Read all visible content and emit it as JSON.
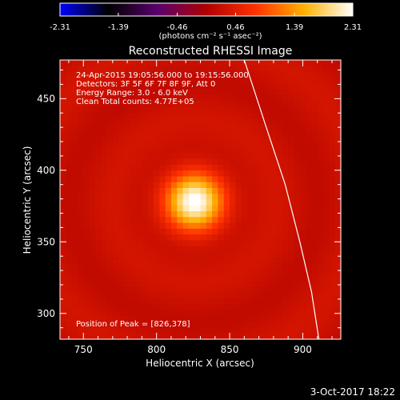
{
  "chart_data": {
    "type": "heatmap",
    "title": "Reconstructed RHESSI Image",
    "xlabel": "Heliocentric X (arcsec)",
    "ylabel": "Heliocentric Y (arcsec)",
    "xlim": [
      734,
      926
    ],
    "ylim": [
      282,
      477
    ],
    "x_ticks": [
      750,
      800,
      850,
      900
    ],
    "y_ticks": [
      300,
      350,
      400,
      450
    ],
    "colormap": [
      "#0000ff",
      "#000000",
      "#5a006e",
      "#b00000",
      "#ff3000",
      "#ffb000",
      "#ffffff"
    ],
    "colorbar": {
      "min": -2.31,
      "max": 2.31,
      "ticks": [
        "-2.31",
        "-1.39",
        "-0.46",
        "0.46",
        "1.39",
        "2.31"
      ],
      "units": "(photons cm⁻² s⁻¹ asec⁻²)"
    },
    "annotations": [
      "24-Apr-2015 19:05:56.000 to 19:15:56.000",
      "Detectors: 3F 5F 6F 7F 8F 9F, Att 0",
      "Energy Range: 3.0 - 6.0 keV",
      "Clean    Total counts: 4.77E+05"
    ],
    "peak_label": "Position of Peak = [826,378]",
    "peak": [
      826,
      378
    ],
    "peak_value": 2.31,
    "source_sigma_arcsec": 14,
    "background_value": 0.25,
    "limb_curve": [
      [
        860,
        477
      ],
      [
        875,
        430
      ],
      [
        888,
        390
      ],
      [
        898,
        350
      ],
      [
        906,
        315
      ],
      [
        911,
        282
      ]
    ]
  },
  "footer": {
    "date": "3-Oct-2017 18:22"
  }
}
